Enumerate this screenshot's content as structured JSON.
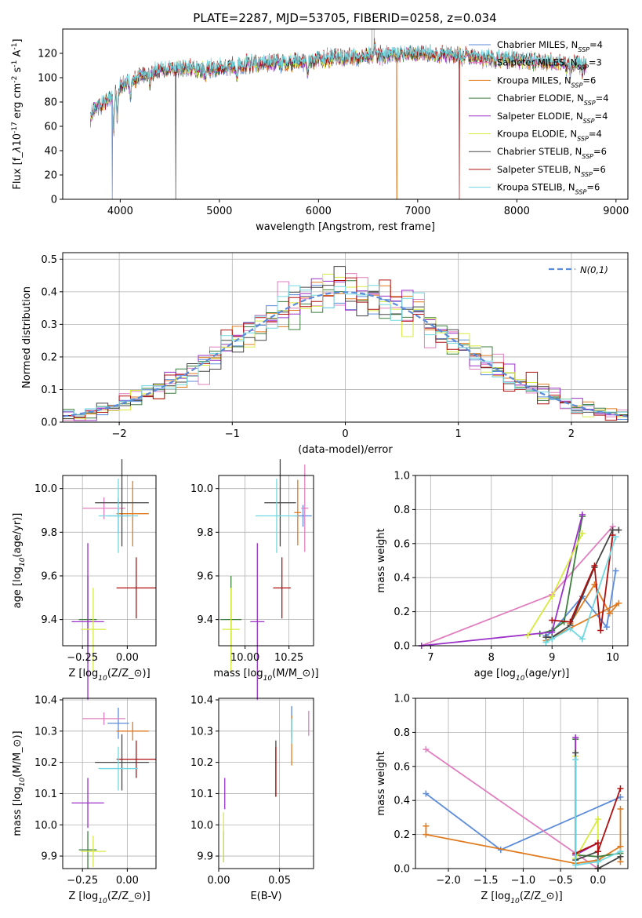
{
  "figure": {
    "title": "PLATE=2287, MJD=53705, FIBERID=0258, z=0.034"
  },
  "models": [
    {
      "name": "Chabrier MILES",
      "nssp": 4,
      "color": "#5b8bd9"
    },
    {
      "name": "Salpeter MILES",
      "nssp": 3,
      "color": "#e07fbf"
    },
    {
      "name": "Kroupa MILES",
      "nssp": 6,
      "color": "#e07b20"
    },
    {
      "name": "Chabrier ELODIE",
      "nssp": 4,
      "color": "#3e7f3e"
    },
    {
      "name": "Salpeter ELODIE",
      "nssp": 4,
      "color": "#9b30c8"
    },
    {
      "name": "Kroupa ELODIE",
      "nssp": 4,
      "color": "#d8ea40"
    },
    {
      "name": "Chabrier STELIB",
      "nssp": 6,
      "color": "#454545"
    },
    {
      "name": "Salpeter STELIB",
      "nssp": 6,
      "color": "#b01010"
    },
    {
      "name": "Kroupa STELIB",
      "nssp": 6,
      "color": "#70d7e0"
    }
  ],
  "legend_labels": [
    "Chabrier MILES, N$_{SSP}$=4",
    "Salpeter MILES, N$_{SSP}$=3",
    "Kroupa MILES, N$_{SSP}$=6",
    "Chabrier ELODIE, N$_{SSP}$=4",
    "Salpeter ELODIE, N$_{SSP}$=4",
    "Kroupa ELODIE, N$_{SSP}$=4",
    "Chabrier STELIB, N$_{SSP}$=6",
    "Salpeter STELIB, N$_{SSP}$=6",
    "Kroupa STELIB, N$_{SSP}$=6"
  ],
  "chart_data": [
    {
      "id": "spectrum",
      "type": "line",
      "xlabel": "wavelength [Angstrom, rest frame]",
      "ylabel": "Flux [f$_\\lambda$10$^{-17}$ erg cm$^{-2}$ s$^{-1}$ A$^{-1}$]",
      "xlim": [
        3420,
        9120
      ],
      "ylim": [
        0,
        140
      ],
      "xticks": [
        4000,
        5000,
        6000,
        7000,
        8000,
        9000
      ],
      "yticks": [
        0,
        20,
        40,
        60,
        80,
        100,
        120
      ],
      "legend": "right",
      "continuum_knots": [
        [
          3700,
          70
        ],
        [
          3850,
          80
        ],
        [
          3950,
          88
        ],
        [
          4050,
          96
        ],
        [
          4300,
          104
        ],
        [
          4500,
          108
        ],
        [
          4800,
          106
        ],
        [
          5200,
          110
        ],
        [
          5500,
          112
        ],
        [
          6000,
          115
        ],
        [
          6500,
          118
        ],
        [
          7000,
          120
        ],
        [
          7500,
          117
        ],
        [
          8000,
          114
        ],
        [
          8500,
          112
        ],
        [
          8700,
          110
        ]
      ],
      "absorption_features": [
        [
          3934,
          30
        ],
        [
          3969,
          25
        ],
        [
          4102,
          15
        ],
        [
          4300,
          14
        ],
        [
          4861,
          8
        ],
        [
          5175,
          12
        ],
        [
          5890,
          10
        ],
        [
          6563,
          -8
        ],
        [
          8500,
          8
        ],
        [
          8542,
          8
        ],
        [
          8662,
          6
        ]
      ],
      "dropouts": [
        [
          3920,
          0
        ],
        [
          4560,
          0
        ],
        [
          6790,
          0
        ],
        [
          7420,
          0
        ]
      ],
      "spikes": [
        [
          6540,
          140
        ],
        [
          6560,
          140
        ]
      ]
    },
    {
      "id": "residuals",
      "type": "histogram",
      "xlabel": "(data-model)/error",
      "ylabel": "Normed distribution",
      "xlim": [
        -2.5,
        2.5
      ],
      "ylim": [
        0,
        0.52
      ],
      "xticks": [
        -2,
        -1,
        0,
        1,
        2
      ],
      "yticks": [
        0.0,
        0.1,
        0.2,
        0.3,
        0.4,
        0.5
      ],
      "bin_width": 0.1,
      "reference_curve": {
        "label": "$\\mathcal{N}(0,1)$",
        "mu": 0,
        "sigma": 1,
        "style": "dashed",
        "color": "#5b8bd9"
      }
    },
    {
      "id": "age_vs_Z",
      "type": "errorbar",
      "xlabel": "Z [log$_{10}$(Z/Z$_\\odot$)]",
      "ylabel": "age  [log$_{10}$(age/yr)]",
      "xlim": [
        -0.36,
        0.16
      ],
      "ylim": [
        9.28,
        10.06
      ],
      "xticks": [
        -0.25,
        0.0
      ],
      "ytick_labels": [
        "9.4",
        "9.6",
        "9.8",
        "10.0"
      ],
      "xtick_labels": [
        "−0.25",
        "0.00"
      ],
      "points": [
        {
          "m": 0,
          "x": -0.05,
          "y": 9.875,
          "xerr": 0.06,
          "yerr": 0.08
        },
        {
          "m": 1,
          "x": -0.13,
          "y": 9.91,
          "xerr": 0.12,
          "yerr": 0.05
        },
        {
          "m": 2,
          "x": 0.03,
          "y": 9.885,
          "xerr": 0.09,
          "yerr": 0.15
        },
        {
          "m": 3,
          "x": -0.22,
          "y": 9.4,
          "xerr": 0.05,
          "yerr": 0.2
        },
        {
          "m": 4,
          "x": -0.22,
          "y": 9.39,
          "xerr": 0.09,
          "yerr": 0.36
        },
        {
          "m": 5,
          "x": -0.19,
          "y": 9.355,
          "xerr": 0.07,
          "yerr": 0.19
        },
        {
          "m": 6,
          "x": -0.03,
          "y": 9.935,
          "xerr": 0.15,
          "yerr": 0.2
        },
        {
          "m": 7,
          "x": 0.05,
          "y": 9.545,
          "xerr": 0.11,
          "yerr": 0.14
        },
        {
          "m": 8,
          "x": -0.05,
          "y": 9.875,
          "xerr": 0.11,
          "yerr": 0.17
        }
      ]
    },
    {
      "id": "age_vs_mass",
      "type": "errorbar",
      "xlabel": "mass [log$_{10}$(M/M$_\\odot$)]",
      "ylabel": "",
      "xlim": [
        9.85,
        10.39
      ],
      "ylim": [
        9.28,
        10.06
      ],
      "xticks": [
        10.0,
        10.25
      ],
      "ytick_labels": [
        "9.4",
        "9.6",
        "9.8",
        "10.0"
      ],
      "xtick_labels": [
        "10.00",
        "10.25"
      ],
      "points": [
        {
          "m": 0,
          "x": 10.33,
          "y": 9.875,
          "xerr": 0.05,
          "yerr": 0.05
        },
        {
          "m": 1,
          "x": 10.34,
          "y": 9.91,
          "xerr": 0.02,
          "yerr": 0.2
        },
        {
          "m": 2,
          "x": 10.3,
          "y": 9.89,
          "xerr": 0.02,
          "yerr": 0.15
        },
        {
          "m": 3,
          "x": 9.92,
          "y": 9.4,
          "xerr": 0.06,
          "yerr": 0.2
        },
        {
          "m": 4,
          "x": 10.07,
          "y": 9.39,
          "xerr": 0.04,
          "yerr": 0.36
        },
        {
          "m": 5,
          "x": 9.92,
          "y": 9.355,
          "xerr": 0.05,
          "yerr": 0.19
        },
        {
          "m": 6,
          "x": 10.2,
          "y": 9.935,
          "xerr": 0.09,
          "yerr": 0.2
        },
        {
          "m": 7,
          "x": 10.21,
          "y": 9.545,
          "xerr": 0.05,
          "yerr": 0.14
        },
        {
          "m": 8,
          "x": 10.18,
          "y": 9.875,
          "xerr": 0.12,
          "yerr": 0.17
        }
      ]
    },
    {
      "id": "weight_vs_age",
      "type": "line",
      "xlabel": "age  [log$_{10}$(age/yr)]",
      "ylabel": "mass weight",
      "xlim": [
        6.75,
        10.25
      ],
      "ylim": [
        0,
        1.0
      ],
      "xticks": [
        7,
        8,
        9,
        10
      ],
      "yticks": [
        0.0,
        0.2,
        0.4,
        0.6,
        0.8,
        1.0
      ],
      "series": [
        {
          "m": 0,
          "points": [
            [
              8.9,
              0.06
            ],
            [
              9.0,
              0.08
            ],
            [
              9.5,
              0.29
            ],
            [
              9.9,
              0.11
            ],
            [
              10.05,
              0.44
            ]
          ]
        },
        {
          "m": 1,
          "points": [
            [
              6.85,
              0.0
            ],
            [
              9.0,
              0.3
            ],
            [
              10.0,
              0.7
            ]
          ]
        },
        {
          "m": 2,
          "points": [
            [
              9.3,
              0.13
            ],
            [
              9.7,
              0.36
            ],
            [
              9.95,
              0.19
            ],
            [
              10.1,
              0.25
            ],
            [
              8.9,
              0.03
            ]
          ]
        },
        {
          "m": 3,
          "points": [
            [
              8.8,
              0.07
            ],
            [
              9.0,
              0.09
            ],
            [
              9.2,
              0.14
            ],
            [
              9.5,
              0.76
            ]
          ]
        },
        {
          "m": 4,
          "points": [
            [
              6.85,
              0.0
            ],
            [
              9.0,
              0.08
            ],
            [
              9.5,
              0.77
            ]
          ]
        },
        {
          "m": 5,
          "points": [
            [
              8.6,
              0.06
            ],
            [
              9.0,
              0.29
            ],
            [
              9.5,
              0.66
            ]
          ]
        },
        {
          "m": 6,
          "points": [
            [
              8.9,
              0.05
            ],
            [
              9.0,
              0.05
            ],
            [
              9.3,
              0.12
            ],
            [
              9.7,
              0.46
            ],
            [
              10.0,
              0.68
            ],
            [
              10.1,
              0.68
            ]
          ]
        },
        {
          "m": 7,
          "points": [
            [
              9.0,
              0.15
            ],
            [
              9.3,
              0.14
            ],
            [
              9.7,
              0.47
            ],
            [
              9.8,
              0.09
            ],
            [
              10.0,
              0.65
            ]
          ]
        },
        {
          "m": 8,
          "points": [
            [
              8.9,
              0.02
            ],
            [
              9.0,
              0.04
            ],
            [
              9.3,
              0.1
            ],
            [
              9.5,
              0.04
            ],
            [
              10.05,
              0.64
            ]
          ]
        }
      ]
    },
    {
      "id": "mass_vs_Z",
      "type": "errorbar",
      "xlabel": "Z [log$_{10}$(Z/Z$_\\odot$)]",
      "ylabel": "mass [log$_{10}$(M/M$_\\odot$)]",
      "xlim": [
        -0.36,
        0.16
      ],
      "ylim": [
        9.86,
        10.405
      ],
      "xticks": [
        -0.25,
        0.0
      ],
      "ytick_labels": [
        "9.9",
        "10.0",
        "10.1",
        "10.2",
        "10.3",
        "10.4"
      ],
      "xtick_labels": [
        "−0.25",
        "0.00"
      ],
      "points": [
        {
          "m": 0,
          "x": -0.05,
          "y": 10.325,
          "xerr": 0.06,
          "yerr": 0.05
        },
        {
          "m": 1,
          "x": -0.13,
          "y": 10.34,
          "xerr": 0.12,
          "yerr": 0.02
        },
        {
          "m": 2,
          "x": 0.03,
          "y": 10.3,
          "xerr": 0.09,
          "yerr": 0.03
        },
        {
          "m": 3,
          "x": -0.22,
          "y": 9.92,
          "xerr": 0.05,
          "yerr": 0.06
        },
        {
          "m": 4,
          "x": -0.22,
          "y": 10.07,
          "xerr": 0.09,
          "yerr": 0.08
        },
        {
          "m": 5,
          "x": -0.19,
          "y": 9.915,
          "xerr": 0.07,
          "yerr": 0.05
        },
        {
          "m": 6,
          "x": -0.03,
          "y": 10.2,
          "xerr": 0.15,
          "yerr": 0.09
        },
        {
          "m": 7,
          "x": 0.05,
          "y": 10.21,
          "xerr": 0.11,
          "yerr": 0.06
        },
        {
          "m": 8,
          "x": -0.05,
          "y": 10.18,
          "xerr": 0.11,
          "yerr": 0.07
        }
      ]
    },
    {
      "id": "mass_vs_EBV",
      "type": "errorbar",
      "xlabel": "E(B-V)",
      "ylabel": "",
      "xlim": [
        0.0,
        0.078
      ],
      "ylim": [
        9.86,
        10.405
      ],
      "xticks": [
        0.0,
        0.05
      ],
      "ytick_labels": [
        "9.9",
        "10.0",
        "10.1",
        "10.2",
        "10.3",
        "10.4"
      ],
      "xtick_labels": [
        "0.00",
        "0.05"
      ],
      "points": [
        {
          "m": 0,
          "x": 0.06,
          "y": 10.33,
          "xerr": 0,
          "yerr": 0.05
        },
        {
          "m": 1,
          "x": 0.074,
          "y": 10.325,
          "xerr": 0,
          "yerr": 0.04
        },
        {
          "m": 2,
          "x": 0.06,
          "y": 10.27,
          "xerr": 0,
          "yerr": 0.08
        },
        {
          "m": 3,
          "x": 0.004,
          "y": 9.93,
          "xerr": 0,
          "yerr": 0.05
        },
        {
          "m": 4,
          "x": 0.005,
          "y": 10.1,
          "xerr": 0,
          "yerr": 0.05
        },
        {
          "m": 5,
          "x": 0.004,
          "y": 9.96,
          "xerr": 0,
          "yerr": 0.08
        },
        {
          "m": 6,
          "x": 0.047,
          "y": 10.18,
          "xerr": 0,
          "yerr": 0.09
        },
        {
          "m": 7,
          "x": 0.047,
          "y": 10.17,
          "xerr": 0,
          "yerr": 0.08
        },
        {
          "m": 8,
          "x": 0.06,
          "y": 10.3,
          "xerr": 0,
          "yerr": 0.04
        }
      ]
    },
    {
      "id": "weight_vs_Z",
      "type": "line",
      "xlabel": "Z [log$_{10}$(Z/Z$_\\odot$)]",
      "ylabel": "mass weight",
      "xlim": [
        -2.44,
        0.4
      ],
      "ylim": [
        0,
        1.0
      ],
      "xticks": [
        -2.0,
        -1.5,
        -1.0,
        -0.5,
        0.0
      ],
      "xtick_labels": [
        "−2.0",
        "−1.5",
        "−1.0",
        "−0.5",
        "0.0"
      ],
      "yticks": [
        0.0,
        0.2,
        0.4,
        0.6,
        0.8,
        1.0
      ],
      "series": [
        {
          "m": 0,
          "points": [
            [
              -2.3,
              0.44
            ],
            [
              -1.3,
              0.11
            ],
            [
              0.3,
              0.42
            ]
          ]
        },
        {
          "m": 1,
          "points": [
            [
              -2.3,
              0.7
            ],
            [
              -0.3,
              0.09
            ],
            [
              0.0,
              0.0
            ]
          ]
        },
        {
          "m": 2,
          "points": [
            [
              -2.3,
              0.25
            ],
            [
              -2.3,
              0.2
            ],
            [
              -0.3,
              0.03
            ],
            [
              0.0,
              0.05
            ],
            [
              0.3,
              0.13
            ],
            [
              0.3,
              0.35
            ],
            [
              0.3,
              0.04
            ]
          ]
        },
        {
          "m": 3,
          "points": [
            [
              -0.3,
              0.76
            ],
            [
              -0.3,
              0.08
            ],
            [
              0.0,
              0.07
            ],
            [
              0.3,
              0.09
            ]
          ]
        },
        {
          "m": 4,
          "points": [
            [
              -0.3,
              0.77
            ],
            [
              -0.3,
              0.08
            ],
            [
              0.0,
              0.15
            ],
            [
              0.0,
              0.0
            ]
          ]
        },
        {
          "m": 5,
          "points": [
            [
              -0.3,
              0.66
            ],
            [
              -0.3,
              0.06
            ],
            [
              0.0,
              0.29
            ],
            [
              0.0,
              0.0
            ]
          ]
        },
        {
          "m": 6,
          "points": [
            [
              -0.3,
              0.68
            ],
            [
              -0.3,
              0.05
            ],
            [
              0.0,
              0.1
            ],
            [
              0.0,
              0.0
            ],
            [
              0.3,
              0.07
            ]
          ]
        },
        {
          "m": 7,
          "points": [
            [
              -0.3,
              0.09
            ],
            [
              0.0,
              0.15
            ],
            [
              0.0,
              0.1
            ],
            [
              0.3,
              0.47
            ]
          ]
        },
        {
          "m": 8,
          "points": [
            [
              -0.3,
              0.64
            ],
            [
              -0.3,
              0.02
            ],
            [
              0.0,
              0.04
            ],
            [
              0.3,
              0.1
            ]
          ]
        }
      ]
    }
  ]
}
